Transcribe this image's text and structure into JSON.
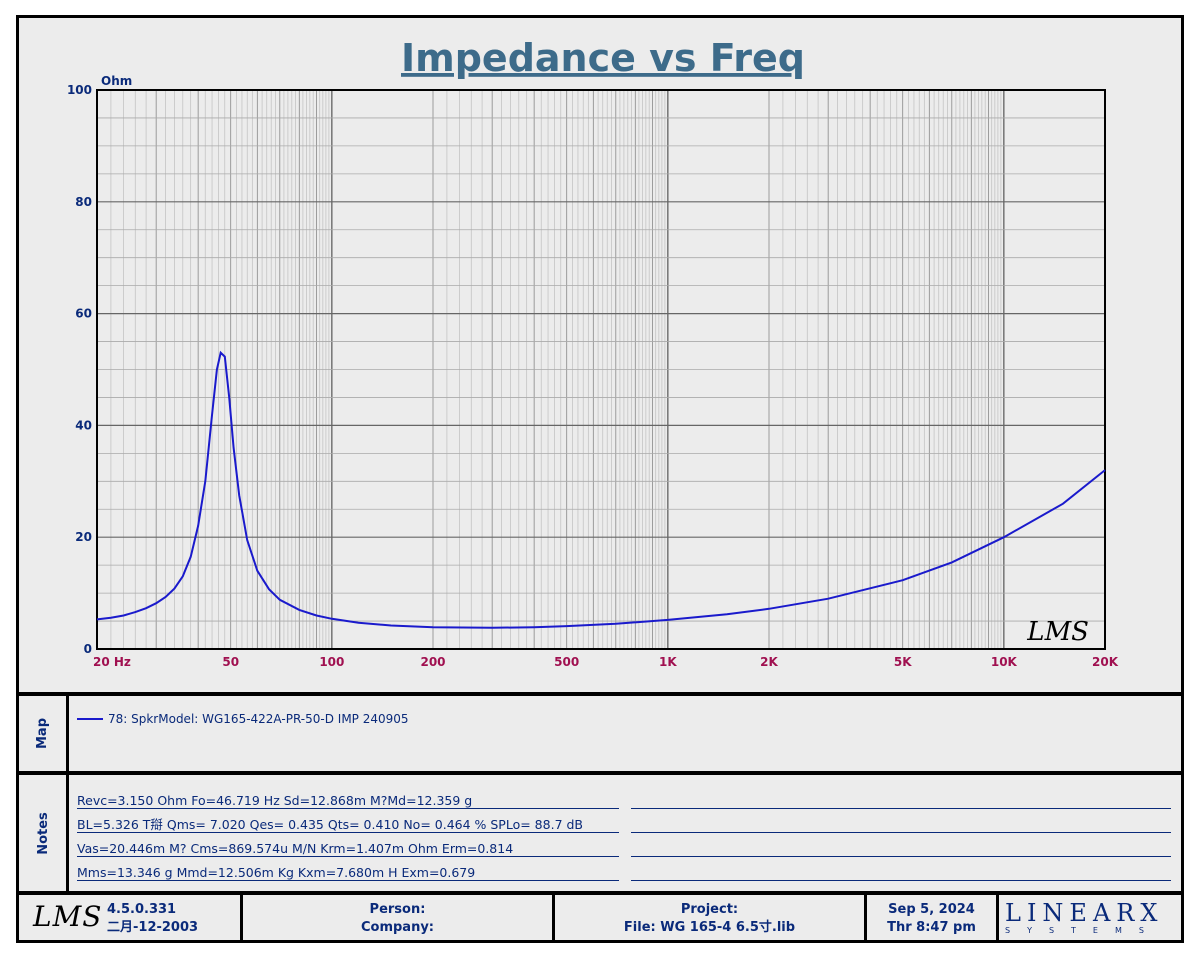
{
  "chart_data": {
    "type": "line",
    "title": "Impedance vs Freq",
    "ylabel": "Ohm",
    "xscale": "log",
    "xlim": [
      20,
      20000
    ],
    "ylim": [
      0,
      100
    ],
    "x_tick_labels": [
      {
        "value": 20,
        "label": "20  Hz"
      },
      {
        "value": 50,
        "label": "50"
      },
      {
        "value": 100,
        "label": "100"
      },
      {
        "value": 200,
        "label": "200"
      },
      {
        "value": 500,
        "label": "500"
      },
      {
        "value": 1000,
        "label": "1K"
      },
      {
        "value": 2000,
        "label": "2K"
      },
      {
        "value": 5000,
        "label": "5K"
      },
      {
        "value": 10000,
        "label": "10K"
      },
      {
        "value": 20000,
        "label": "20K"
      }
    ],
    "y_tick_labels": [
      "0",
      "20",
      "40",
      "60",
      "80",
      "100"
    ],
    "grid": true,
    "series": [
      {
        "name": "78: SpkrModel: WG165-422A-PR-50-D IMP 240905",
        "color": "#1a1acc",
        "points": [
          [
            20,
            5.3
          ],
          [
            22,
            5.6
          ],
          [
            24,
            6.0
          ],
          [
            26,
            6.6
          ],
          [
            28,
            7.3
          ],
          [
            30,
            8.2
          ],
          [
            32,
            9.3
          ],
          [
            34,
            10.8
          ],
          [
            36,
            13.0
          ],
          [
            38,
            16.5
          ],
          [
            40,
            22.0
          ],
          [
            42,
            30.0
          ],
          [
            44,
            42.0
          ],
          [
            45.5,
            50.0
          ],
          [
            46.7,
            53.0
          ],
          [
            48,
            52.3
          ],
          [
            49.5,
            45.0
          ],
          [
            51,
            36.0
          ],
          [
            53,
            27.5
          ],
          [
            56,
            19.5
          ],
          [
            60,
            14.0
          ],
          [
            65,
            10.7
          ],
          [
            70,
            8.8
          ],
          [
            80,
            7.0
          ],
          [
            90,
            6.0
          ],
          [
            100,
            5.4
          ],
          [
            120,
            4.7
          ],
          [
            150,
            4.2
          ],
          [
            200,
            3.9
          ],
          [
            300,
            3.8
          ],
          [
            400,
            3.9
          ],
          [
            500,
            4.1
          ],
          [
            700,
            4.5
          ],
          [
            1000,
            5.2
          ],
          [
            1500,
            6.2
          ],
          [
            2000,
            7.2
          ],
          [
            3000,
            9.0
          ],
          [
            5000,
            12.3
          ],
          [
            7000,
            15.5
          ],
          [
            10000,
            20.0
          ],
          [
            15000,
            26.0
          ],
          [
            20000,
            32.0
          ]
        ]
      }
    ]
  },
  "map_label": "Map",
  "notes_label": "Notes",
  "notes": [
    "Revc=3.150 Ohm  Fo=46.719 Hz  Sd=12.868m M?Md=12.359 g",
    "BL=5.326 T搿  Qms= 7.020  Qes= 0.435  Qts= 0.410  No= 0.464 %  SPLo= 88.7 dB",
    "Vas=20.446m M? Cms=869.574u M/N  Krm=1.407m Ohm  Erm=0.814",
    "Mms=13.346 g  Mmd=12.506m Kg  Kxm=7.680m H  Exm=0.679"
  ],
  "footer": {
    "logo_text": "LMS",
    "version": "4.5.0.331",
    "version_date": "二月-12-2003",
    "person_label": "Person:",
    "company_label": "Company:",
    "project_label": "Project:",
    "file_text": "File: WG 165-4 6.5寸.lib",
    "date": "Sep  5, 2024",
    "time": "Thr  8:47 pm",
    "brand": "LINEARX",
    "brand_sub": "SYSTEMS"
  },
  "watermark": "LMS"
}
